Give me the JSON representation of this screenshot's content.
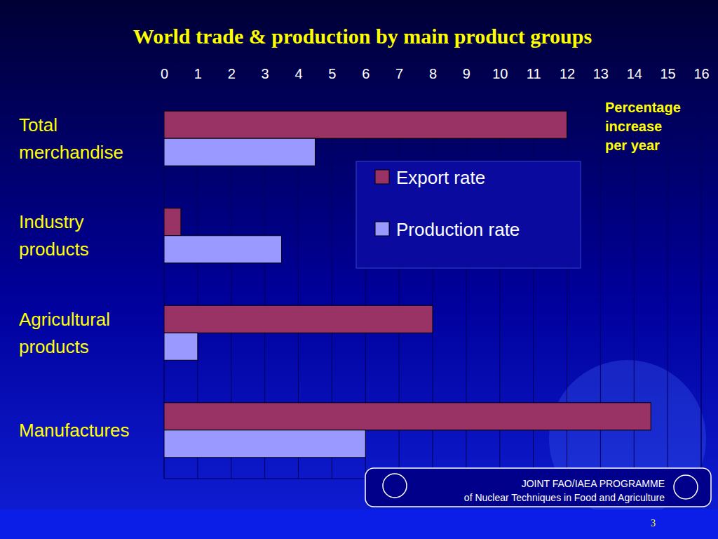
{
  "chart_data": {
    "type": "bar",
    "title": "World trade & production by main product groups",
    "orientation": "horizontal",
    "categories": [
      "Total merchandise",
      "Industry products",
      "Agricultural products",
      "Manufactures"
    ],
    "series": [
      {
        "name": "Export rate",
        "color": "#993366",
        "values": [
          12,
          0.5,
          8,
          14.5
        ]
      },
      {
        "name": "Production rate",
        "color": "#9999ff",
        "values": [
          4.5,
          3.5,
          1,
          6
        ]
      }
    ],
    "xlim": [
      0,
      16
    ],
    "xticks": [
      0,
      1,
      2,
      3,
      4,
      5,
      6,
      7,
      8,
      9,
      10,
      11,
      12,
      13,
      14,
      15,
      16
    ],
    "grid": true,
    "legend": "center",
    "annotations": [
      "Percentage increase per year"
    ]
  },
  "footer": {
    "lines": [
      "JOINT FAO/IAEA PROGRAMME",
      "of Nuclear Techniques in Food and Agriculture"
    ],
    "page_number": "3"
  }
}
